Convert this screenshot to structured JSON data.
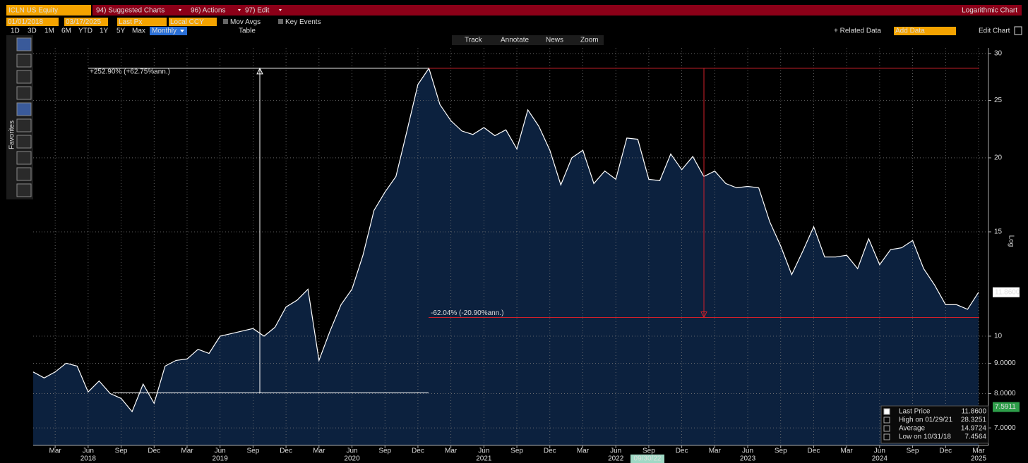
{
  "header": {
    "ticker": "ICLN US Equity",
    "menus": [
      "94) Suggested Charts",
      "96) Actions",
      "97) Edit"
    ],
    "chart_mode": "Logarithmic Chart"
  },
  "controls": {
    "start_date": "01/01/2018",
    "end_date": "03/17/2025",
    "field": "Last Px",
    "currency": "Local CCY",
    "toggles": [
      "Mov Avgs",
      "Key Events"
    ],
    "periods": [
      "1D",
      "3D",
      "1M",
      "6M",
      "YTD",
      "1Y",
      "5Y",
      "Max"
    ],
    "frequency": "Monthly",
    "table": "Table",
    "tools": [
      "Track",
      "Annotate",
      "News",
      "Zoom"
    ],
    "related": "+ Related Data",
    "add_data": "Add Data",
    "edit_chart": "Edit Chart",
    "favorites": "Favorites"
  },
  "chart_data": {
    "type": "area",
    "log_scale": true,
    "grid": true,
    "y_axis_label": "Log",
    "ylim": [
      6.54,
      30.66
    ],
    "yticks": [
      30,
      25,
      20,
      15,
      10,
      {
        "value": 9,
        "label": "9.0000"
      },
      {
        "value": 8,
        "label": "8.0000"
      },
      {
        "value": 7,
        "label": "7.0000"
      }
    ],
    "x": [
      "2018-01",
      "2018-02",
      "2018-03",
      "2018-04",
      "2018-05",
      "2018-06",
      "2018-07",
      "2018-08",
      "2018-09",
      "2018-10",
      "2018-11",
      "2018-12",
      "2019-01",
      "2019-02",
      "2019-03",
      "2019-04",
      "2019-05",
      "2019-06",
      "2019-07",
      "2019-08",
      "2019-09",
      "2019-10",
      "2019-11",
      "2019-12",
      "2020-01",
      "2020-02",
      "2020-03",
      "2020-04",
      "2020-05",
      "2020-06",
      "2020-07",
      "2020-08",
      "2020-09",
      "2020-10",
      "2020-11",
      "2020-12",
      "2021-01",
      "2021-02",
      "2021-03",
      "2021-04",
      "2021-05",
      "2021-06",
      "2021-07",
      "2021-08",
      "2021-09",
      "2021-10",
      "2021-11",
      "2021-12",
      "2022-01",
      "2022-02",
      "2022-03",
      "2022-04",
      "2022-05",
      "2022-06",
      "2022-07",
      "2022-08",
      "2022-09",
      "2022-10",
      "2022-11",
      "2022-12",
      "2023-01",
      "2023-02",
      "2023-03",
      "2023-04",
      "2023-05",
      "2023-06",
      "2023-07",
      "2023-08",
      "2023-09",
      "2023-10",
      "2023-11",
      "2023-12",
      "2024-01",
      "2024-02",
      "2024-03",
      "2024-04",
      "2024-05",
      "2024-06",
      "2024-07",
      "2024-08",
      "2024-09",
      "2024-10",
      "2024-11",
      "2024-12",
      "2025-01",
      "2025-02",
      "2025-03"
    ],
    "xticks": [
      {
        "value": "2018-03",
        "label": "Mar"
      },
      {
        "value": "2018-06",
        "label": "Jun"
      },
      {
        "value": "2018-09",
        "label": "Sep"
      },
      {
        "value": "2018-12",
        "label": "Dec"
      },
      {
        "value": "2019-03",
        "label": "Mar"
      },
      {
        "value": "2019-06",
        "label": "Jun"
      },
      {
        "value": "2019-09",
        "label": "Sep"
      },
      {
        "value": "2019-12",
        "label": "Dec"
      },
      {
        "value": "2020-03",
        "label": "Mar"
      },
      {
        "value": "2020-06",
        "label": "Jun"
      },
      {
        "value": "2020-09",
        "label": "Sep"
      },
      {
        "value": "2020-12",
        "label": "Dec"
      },
      {
        "value": "2021-03",
        "label": "Mar"
      },
      {
        "value": "2021-06",
        "label": "Jun"
      },
      {
        "value": "2021-09",
        "label": "Sep"
      },
      {
        "value": "2021-12",
        "label": "Dec"
      },
      {
        "value": "2022-03",
        "label": "Mar"
      },
      {
        "value": "2022-06",
        "label": "Jun"
      },
      {
        "value": "2022-09",
        "label": "Sep"
      },
      {
        "value": "2022-12",
        "label": "Dec"
      },
      {
        "value": "2023-03",
        "label": "Mar"
      },
      {
        "value": "2023-06",
        "label": "Jun"
      },
      {
        "value": "2023-09",
        "label": "Sep"
      },
      {
        "value": "2023-12",
        "label": "Dec"
      },
      {
        "value": "2024-03",
        "label": "Mar"
      },
      {
        "value": "2024-06",
        "label": "Jun"
      },
      {
        "value": "2024-09",
        "label": "Sep"
      },
      {
        "value": "2024-12",
        "label": "Dec"
      },
      {
        "value": "2025-03",
        "label": "Mar"
      }
    ],
    "year_labels": [
      {
        "value": "2018-06",
        "label": "2018"
      },
      {
        "value": "2019-06",
        "label": "2019"
      },
      {
        "value": "2020-06",
        "label": "2020"
      },
      {
        "value": "2021-06",
        "label": "2021"
      },
      {
        "value": "2022-06",
        "label": "2022"
      },
      {
        "value": "2023-06",
        "label": "2023"
      },
      {
        "value": "2024-06",
        "label": "2024"
      },
      {
        "value": "2025-03",
        "label": "2025"
      }
    ],
    "series": [
      {
        "name": "Last Price",
        "color": "#ffffff",
        "fill": "#0c213e",
        "values": [
          8.7,
          8.5,
          8.7,
          9.0,
          8.9,
          8.05,
          8.4,
          8.0,
          7.85,
          7.4564,
          8.3,
          7.7,
          8.9,
          9.1,
          9.15,
          9.5,
          9.35,
          10.0,
          10.1,
          10.2,
          10.3,
          10.0,
          10.35,
          11.2,
          11.5,
          12.0,
          9.1,
          10.2,
          11.3,
          12.0,
          13.7,
          16.3,
          17.5,
          18.6,
          22.2,
          26.6,
          28.3251,
          24.6,
          23.1,
          22.2,
          21.9,
          22.5,
          21.8,
          22.3,
          20.7,
          24.1,
          22.6,
          20.6,
          18.0,
          20.0,
          20.6,
          18.1,
          19.0,
          18.4,
          21.6,
          21.5,
          18.4,
          18.3,
          20.3,
          19.1,
          20.1,
          18.6,
          19.0,
          18.1,
          17.8,
          17.9,
          17.8,
          15.6,
          14.2,
          12.7,
          13.9,
          15.3,
          13.6,
          13.6,
          13.7,
          13.0,
          14.6,
          13.2,
          14.0,
          14.1,
          14.5,
          13.0,
          12.2,
          11.3,
          11.3,
          11.1,
          11.86
        ]
      }
    ],
    "annotations": [
      {
        "text": "+252.90% (+62.75%ann.)",
        "from": 8.02,
        "to": 28.3251,
        "color": "#ffffff"
      },
      {
        "text": "-62.04% (-20.90%ann.)",
        "from": 28.3251,
        "to": 10.752,
        "color": "#d0202a"
      }
    ],
    "price_tags": [
      {
        "value": 11.86,
        "label": "11.8600",
        "color": "#ffffff"
      },
      {
        "value": 7.5911,
        "label": "7.5911",
        "color": "#2e9e4a"
      }
    ],
    "legend": {
      "position": "lower right",
      "rows": [
        {
          "value": "11.8600"
        },
        {
          "label": "High on 01/29/21",
          "value": "28.3251"
        },
        {
          "label": "Average",
          "value": "14.9724"
        },
        {
          "label": "Low on 10/31/18",
          "value": "7.4564"
        }
      ]
    },
    "crosshair_label": "09/30/22"
  }
}
